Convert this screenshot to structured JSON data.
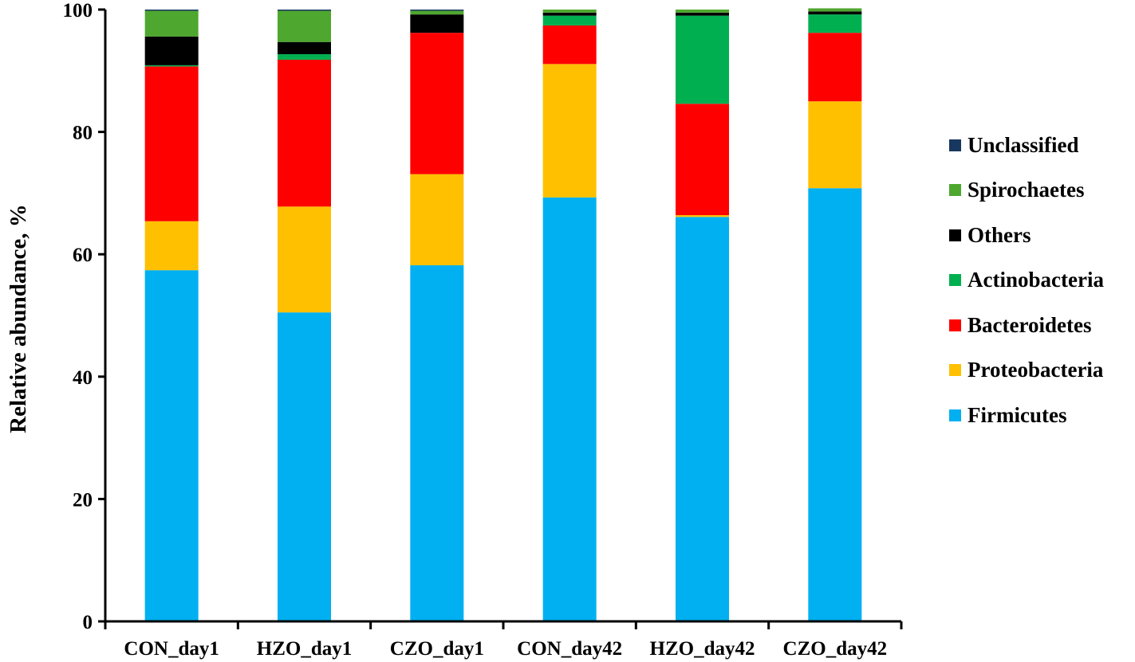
{
  "chart_data": {
    "type": "bar",
    "stacked": true,
    "title": "",
    "xlabel": "",
    "ylabel": "Relative abundance, %",
    "ylim": [
      0,
      100
    ],
    "yticks": [
      "0",
      "20",
      "40",
      "60",
      "80",
      "100"
    ],
    "grid": false,
    "legend_position": "right",
    "categories": [
      "CON_day1",
      "HZO_day1",
      "CZO_day1",
      "CON_day42",
      "HZO_day42",
      "CZO_day42"
    ],
    "series": [
      {
        "name": "Firmicutes",
        "color": "#00b0f0",
        "values": [
          57.4,
          50.5,
          58.2,
          69.3,
          66.1,
          70.8
        ]
      },
      {
        "name": "Proteobacteria",
        "color": "#ffc000",
        "values": [
          8.0,
          17.3,
          14.9,
          21.8,
          0.3,
          14.2
        ]
      },
      {
        "name": "Bacteroidetes",
        "color": "#ff0000",
        "values": [
          25.3,
          24.0,
          23.1,
          6.3,
          18.2,
          11.2
        ]
      },
      {
        "name": "Actinobacteria",
        "color": "#00b050",
        "values": [
          0.2,
          0.9,
          0.0,
          1.6,
          14.4,
          3.0
        ]
      },
      {
        "name": "Others",
        "color": "#000000",
        "values": [
          4.7,
          2.0,
          3.0,
          0.5,
          0.5,
          0.5
        ]
      },
      {
        "name": "Spirochaetes",
        "color": "#4ea72e",
        "values": [
          4.2,
          5.1,
          0.6,
          0.5,
          0.5,
          0.5
        ]
      },
      {
        "name": "Unclassified",
        "color": "#17375e",
        "values": [
          0.2,
          0.2,
          0.2,
          0.0,
          0.0,
          0.0
        ]
      }
    ]
  }
}
